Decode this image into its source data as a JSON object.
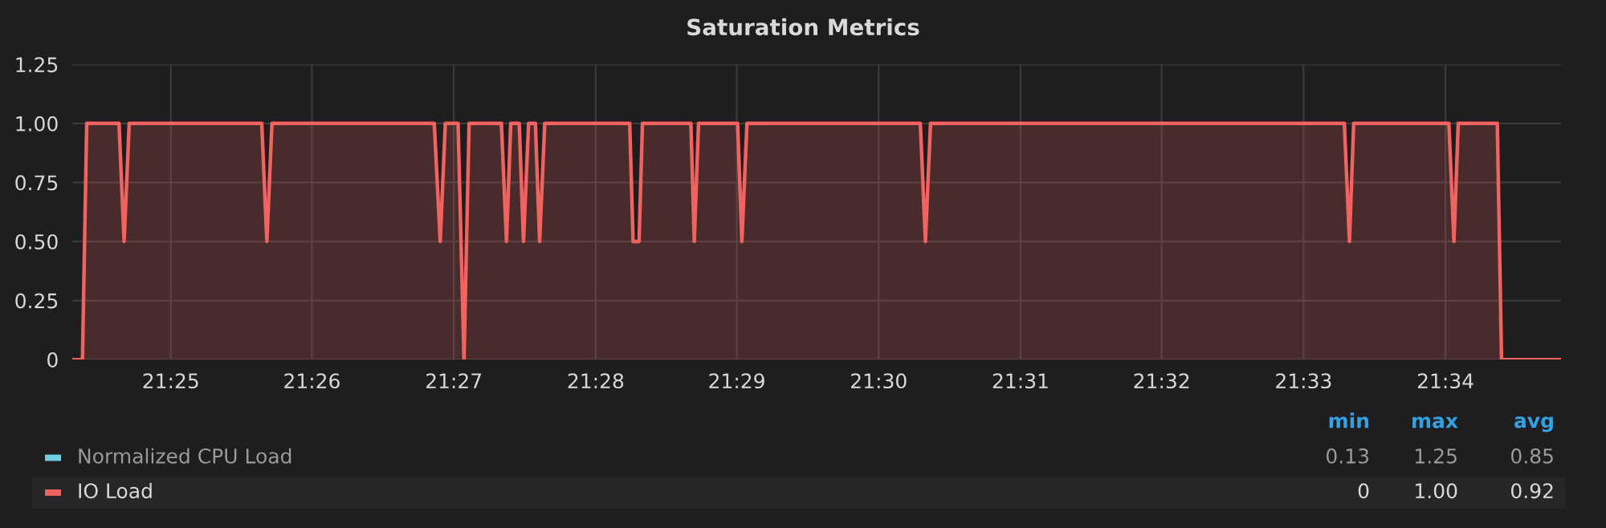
{
  "chart_data": {
    "type": "area",
    "title": "Saturation Metrics",
    "series": [
      {
        "name": "Normalized CPU Load",
        "color": "#6ed0e0"
      },
      {
        "name": "IO Load",
        "color": "#f2625f",
        "x": [
          21.4051,
          21.4063,
          21.4068,
          21.4106,
          21.4112,
          21.4118,
          21.4274,
          21.428,
          21.4286,
          21.4477,
          21.4484,
          21.449,
          21.4505,
          21.4512,
          21.4518,
          21.4556,
          21.4562,
          21.4567,
          21.4577,
          21.4582,
          21.4588,
          21.4596,
          21.4601,
          21.4607,
          21.4707,
          21.4711,
          21.4718,
          21.4722,
          21.4779,
          21.4783,
          21.4788,
          21.4834,
          21.4839,
          21.4845,
          21.5049,
          21.5055,
          21.5061,
          21.5548,
          21.5554,
          21.5559,
          21.5671,
          21.5677,
          21.5682,
          21.5728,
          21.5733,
          21.5803
        ],
        "values": [
          0,
          0,
          1,
          1,
          0.5,
          1,
          1,
          0.5,
          1,
          1,
          0.5,
          1,
          1,
          0,
          1,
          1,
          0.5,
          1,
          1,
          0.5,
          1,
          1,
          0.5,
          1,
          1,
          0.5,
          0.5,
          1,
          1,
          0.5,
          1,
          1,
          0.5,
          1,
          1,
          0.5,
          1,
          1,
          0.5,
          1,
          1,
          0.5,
          1,
          1,
          0,
          0
        ]
      }
    ],
    "xlim": [
      21.4051,
      21.5803
    ],
    "xticks": [
      {
        "value": 21.4167,
        "label": "21:25"
      },
      {
        "value": 21.4333,
        "label": "21:26"
      },
      {
        "value": 21.45,
        "label": "21:27"
      },
      {
        "value": 21.4667,
        "label": "21:28"
      },
      {
        "value": 21.4833,
        "label": "21:29"
      },
      {
        "value": 21.5,
        "label": "21:30"
      },
      {
        "value": 21.5167,
        "label": "21:31"
      },
      {
        "value": 21.5333,
        "label": "21:32"
      },
      {
        "value": 21.55,
        "label": "21:33"
      },
      {
        "value": 21.5667,
        "label": "21:34"
      }
    ],
    "ylim": [
      0,
      1.25
    ],
    "yticks": [
      0,
      {
        "value": 0.25,
        "label": "0.25"
      },
      {
        "value": 0.5,
        "label": "0.50"
      },
      {
        "value": 0.75,
        "label": "0.75"
      },
      {
        "value": 1,
        "label": "1.00"
      },
      {
        "value": 1.25,
        "label": "1.25"
      }
    ],
    "grid": true,
    "legend": "bottom",
    "annotations": [
      "min",
      "max",
      "avg",
      "0.13",
      "1.25",
      "0.85",
      "0",
      "1.00",
      "0.92"
    ]
  }
}
